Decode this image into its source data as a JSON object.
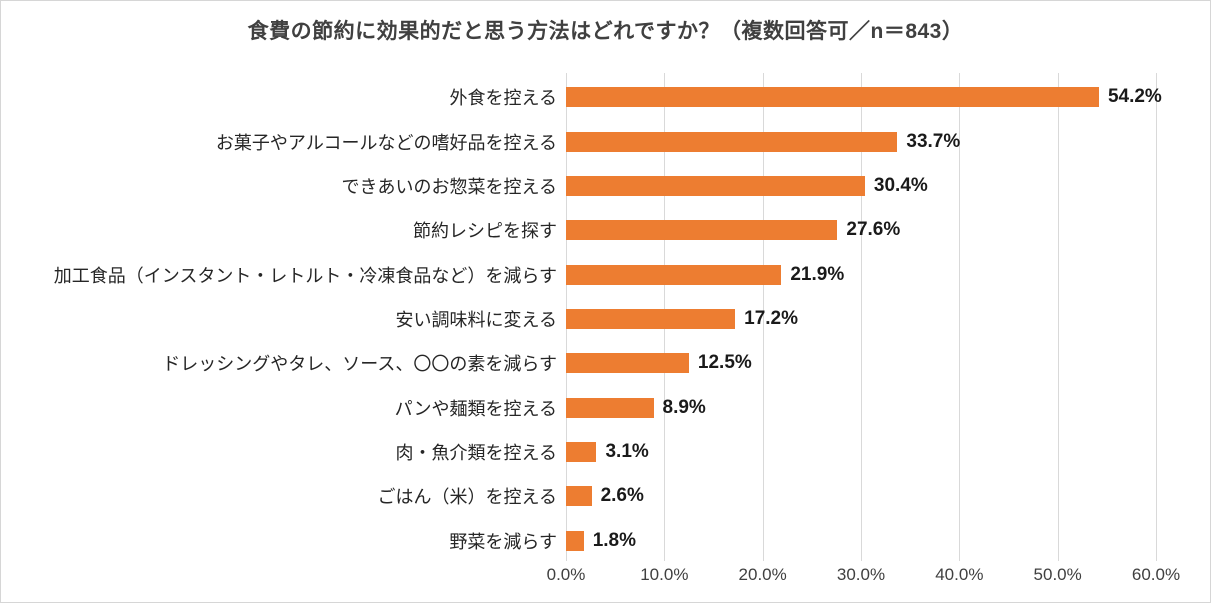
{
  "chart_data": {
    "type": "bar",
    "orientation": "horizontal",
    "title": "食費の節約に効果的だと思う方法はどれですか？（複数回答可／n＝843）",
    "categories": [
      "外食を控える",
      "お菓子やアルコールなどの嗜好品を控える",
      "できあいのお惣菜を控える",
      "節約レシピを探す",
      "加工食品（インスタント・レトルト・冷凍食品など）を減らす",
      "安い調味料に変える",
      "ドレッシングやタレ、ソース、〇〇の素を減らす",
      "パンや麺類を控える",
      "肉・魚介類を控える",
      "ごはん（米）を控える",
      "野菜を減らす"
    ],
    "values": [
      54.2,
      33.7,
      30.4,
      27.6,
      21.9,
      17.2,
      12.5,
      8.9,
      3.1,
      2.6,
      1.8
    ],
    "value_labels": [
      "54.2%",
      "33.7%",
      "30.4%",
      "27.6%",
      "21.9%",
      "17.2%",
      "12.5%",
      "8.9%",
      "3.1%",
      "2.6%",
      "1.8%"
    ],
    "xlabel": "",
    "ylabel": "",
    "xlim": [
      0,
      60
    ],
    "x_ticks": [
      "0.0%",
      "10.0%",
      "20.0%",
      "30.0%",
      "40.0%",
      "50.0%",
      "60.0%"
    ],
    "grid": true,
    "legend_position": "none",
    "bar_color": "#ED7D31",
    "gridline_color": "#D9D9D9",
    "title_color": "#404040",
    "label_color": "#262626"
  }
}
